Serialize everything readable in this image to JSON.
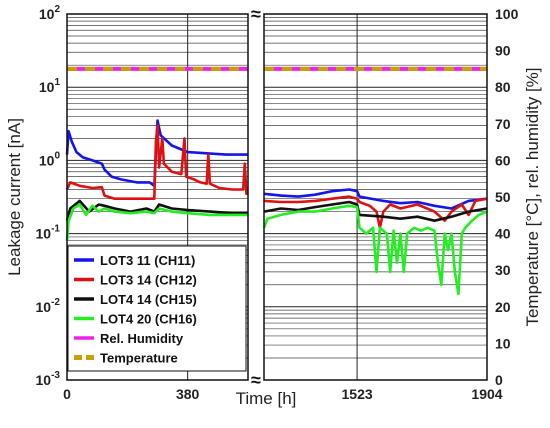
{
  "chart_data": {
    "type": "line",
    "xlabel": "Time [h]",
    "ylabel_left": "Leakage current [nA]",
    "ylabel_right": "Temperature [°C], rel. humidity [%]",
    "y_left_scale": "log",
    "y_left_lim": [
      0.001,
      100
    ],
    "y_right_lim": [
      0,
      100
    ],
    "y_left_ticks": [
      {
        "v": 0.001,
        "base": "10",
        "exp": "-3"
      },
      {
        "v": 0.01,
        "base": "10",
        "exp": "-2"
      },
      {
        "v": 0.1,
        "base": "10",
        "exp": "-1"
      },
      {
        "v": 1,
        "base": "10",
        "exp": "0"
      },
      {
        "v": 10,
        "base": "10",
        "exp": "1"
      },
      {
        "v": 100,
        "base": "10",
        "exp": "2"
      }
    ],
    "y_right_ticks": [
      "0",
      "10",
      "20",
      "30",
      "40",
      "50",
      "60",
      "70",
      "80",
      "90",
      "100"
    ],
    "x_ticks": [
      "0",
      "380",
      "1523",
      "1904"
    ],
    "axis_break_symbol": "≈",
    "grid": true,
    "legend_position": "bottom-left",
    "segments": [
      {
        "x_range": [
          0,
          570
        ]
      },
      {
        "x_range": [
          1250,
          1904
        ]
      }
    ],
    "series": [
      {
        "name": "LOT3 11  (CH11)",
        "axis": "left",
        "color": "#1515e8",
        "points": [
          [
            0,
            1.2
          ],
          [
            5,
            2.5
          ],
          [
            15,
            1.8
          ],
          [
            30,
            1.3
          ],
          [
            50,
            1.1
          ],
          [
            80,
            1.0
          ],
          [
            110,
            0.9
          ],
          [
            118,
            0.75
          ],
          [
            140,
            0.6
          ],
          [
            170,
            0.55
          ],
          [
            220,
            0.5
          ],
          [
            260,
            0.5
          ],
          [
            275,
            0.45
          ],
          [
            285,
            3.5
          ],
          [
            295,
            2.2
          ],
          [
            330,
            1.6
          ],
          [
            380,
            1.3
          ],
          [
            440,
            1.25
          ],
          [
            500,
            1.2
          ],
          [
            570,
            1.2
          ],
          null,
          [
            1250,
            0.35
          ],
          [
            1300,
            0.33
          ],
          [
            1350,
            0.32
          ],
          [
            1400,
            0.34
          ],
          [
            1450,
            0.38
          ],
          [
            1500,
            0.4
          ],
          [
            1523,
            0.38
          ],
          [
            1530,
            0.32
          ],
          [
            1600,
            0.28
          ],
          [
            1650,
            0.26
          ],
          [
            1700,
            0.27
          ],
          [
            1750,
            0.24
          ],
          [
            1800,
            0.22
          ],
          [
            1850,
            0.28
          ],
          [
            1904,
            0.3
          ]
        ]
      },
      {
        "name": "LOT3 14  (CH12)",
        "axis": "left",
        "color": "#dd1111",
        "points": [
          [
            0,
            0.4
          ],
          [
            10,
            0.5
          ],
          [
            40,
            0.45
          ],
          [
            80,
            0.42
          ],
          [
            110,
            0.43
          ],
          [
            118,
            0.33
          ],
          [
            150,
            0.3
          ],
          [
            200,
            0.3
          ],
          [
            260,
            0.3
          ],
          [
            275,
            0.3
          ],
          [
            280,
            1.8
          ],
          [
            285,
            3.0
          ],
          [
            290,
            0.8
          ],
          [
            300,
            2.0
          ],
          [
            305,
            0.9
          ],
          [
            330,
            0.7
          ],
          [
            360,
            0.65
          ],
          [
            370,
            2.0
          ],
          [
            375,
            0.6
          ],
          [
            400,
            0.55
          ],
          [
            420,
            0.5
          ],
          [
            440,
            0.48
          ],
          [
            445,
            1.2
          ],
          [
            450,
            0.48
          ],
          [
            480,
            0.42
          ],
          [
            520,
            0.4
          ],
          [
            555,
            0.4
          ],
          [
            560,
            0.9
          ],
          [
            565,
            0.35
          ],
          [
            570,
            0.35
          ],
          null,
          [
            1250,
            0.28
          ],
          [
            1300,
            0.27
          ],
          [
            1350,
            0.27
          ],
          [
            1400,
            0.28
          ],
          [
            1450,
            0.3
          ],
          [
            1500,
            0.32
          ],
          [
            1523,
            0.3
          ],
          [
            1530,
            0.27
          ],
          [
            1560,
            0.24
          ],
          [
            1580,
            0.2
          ],
          [
            1590,
            0.12
          ],
          [
            1600,
            0.2
          ],
          [
            1620,
            0.25
          ],
          [
            1650,
            0.22
          ],
          [
            1700,
            0.25
          ],
          [
            1750,
            0.2
          ],
          [
            1780,
            0.15
          ],
          [
            1800,
            0.2
          ],
          [
            1830,
            0.25
          ],
          [
            1850,
            0.18
          ],
          [
            1870,
            0.28
          ],
          [
            1904,
            0.3
          ]
        ]
      },
      {
        "name": "LOT4 14  (CH15)",
        "axis": "left",
        "color": "#111111",
        "points": [
          [
            0,
            0.15
          ],
          [
            10,
            0.22
          ],
          [
            40,
            0.28
          ],
          [
            70,
            0.2
          ],
          [
            100,
            0.25
          ],
          [
            118,
            0.24
          ],
          [
            150,
            0.22
          ],
          [
            200,
            0.2
          ],
          [
            250,
            0.22
          ],
          [
            275,
            0.2
          ],
          [
            290,
            0.25
          ],
          [
            330,
            0.22
          ],
          [
            380,
            0.21
          ],
          [
            450,
            0.2
          ],
          [
            520,
            0.19
          ],
          [
            570,
            0.19
          ],
          null,
          [
            1250,
            0.2
          ],
          [
            1300,
            0.22
          ],
          [
            1350,
            0.21
          ],
          [
            1400,
            0.23
          ],
          [
            1450,
            0.25
          ],
          [
            1500,
            0.27
          ],
          [
            1523,
            0.25
          ],
          [
            1530,
            0.18
          ],
          [
            1600,
            0.17
          ],
          [
            1650,
            0.16
          ],
          [
            1700,
            0.17
          ],
          [
            1750,
            0.15
          ],
          [
            1800,
            0.17
          ],
          [
            1850,
            0.2
          ],
          [
            1904,
            0.22
          ]
        ]
      },
      {
        "name": "LOT4 20  (CH16)",
        "axis": "left",
        "color": "#22ee22",
        "points": [
          [
            0,
            0.08
          ],
          [
            5,
            0.15
          ],
          [
            20,
            0.22
          ],
          [
            40,
            0.25
          ],
          [
            60,
            0.18
          ],
          [
            80,
            0.24
          ],
          [
            100,
            0.2
          ],
          [
            118,
            0.22
          ],
          [
            150,
            0.2
          ],
          [
            200,
            0.19
          ],
          [
            250,
            0.2
          ],
          [
            275,
            0.19
          ],
          [
            290,
            0.22
          ],
          [
            330,
            0.2
          ],
          [
            380,
            0.19
          ],
          [
            450,
            0.18
          ],
          [
            520,
            0.18
          ],
          [
            570,
            0.18
          ],
          null,
          [
            1250,
            0.12
          ],
          [
            1260,
            0.16
          ],
          [
            1300,
            0.18
          ],
          [
            1350,
            0.2
          ],
          [
            1400,
            0.2
          ],
          [
            1450,
            0.22
          ],
          [
            1500,
            0.24
          ],
          [
            1523,
            0.23
          ],
          [
            1530,
            0.12
          ],
          [
            1550,
            0.1
          ],
          [
            1570,
            0.12
          ],
          [
            1580,
            0.03
          ],
          [
            1590,
            0.12
          ],
          [
            1610,
            0.1
          ],
          [
            1620,
            0.03
          ],
          [
            1630,
            0.11
          ],
          [
            1640,
            0.04
          ],
          [
            1650,
            0.1
          ],
          [
            1660,
            0.03
          ],
          [
            1670,
            0.1
          ],
          [
            1690,
            0.12
          ],
          [
            1710,
            0.11
          ],
          [
            1730,
            0.12
          ],
          [
            1750,
            0.11
          ],
          [
            1760,
            0.04
          ],
          [
            1770,
            0.02
          ],
          [
            1780,
            0.1
          ],
          [
            1790,
            0.06
          ],
          [
            1800,
            0.1
          ],
          [
            1810,
            0.03
          ],
          [
            1820,
            0.015
          ],
          [
            1830,
            0.1
          ],
          [
            1840,
            0.12
          ],
          [
            1860,
            0.15
          ],
          [
            1880,
            0.18
          ],
          [
            1904,
            0.2
          ]
        ]
      },
      {
        "name": "Rel. Humidity",
        "axis": "right",
        "color": "#ee22ee",
        "style": "solid",
        "points": [
          [
            0,
            85
          ],
          [
            570,
            85
          ],
          null,
          [
            1250,
            85
          ],
          [
            1904,
            85
          ]
        ]
      },
      {
        "name": "Temperature",
        "axis": "right",
        "color": "#c8a000",
        "style": "dashed",
        "points": [
          [
            0,
            85
          ],
          [
            570,
            85
          ],
          null,
          [
            1250,
            85
          ],
          [
            1904,
            85
          ]
        ]
      }
    ]
  }
}
